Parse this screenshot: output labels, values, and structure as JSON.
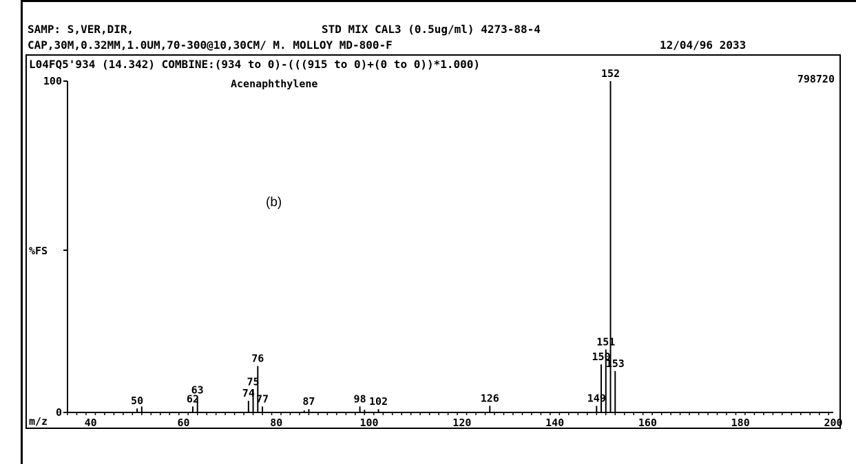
{
  "header": {
    "line1_left": "SAMP: S,VER,DIR,",
    "line1_right": "STD MIX CAL3  (0.5ug/ml) 4273-88-4",
    "line2_left": "CAP,30M,0.32MM,1.0UM,70-300@10,30CM/ M. MOLLOY  MD-800-F",
    "line2_date": "12/04/96 2033",
    "line3": "L04FQ5'934 (14.342)  COMBINE:(934 to 0)-(((915 to 0)+(0 to 0))*1.000)"
  },
  "panel_label": "(b)",
  "chart_data": {
    "type": "bar",
    "title": "Acenaphthylene",
    "xlabel": "m/z",
    "ylabel": "%FS",
    "xlim": [
      35,
      200
    ],
    "ylim": [
      0,
      100
    ],
    "x_ticks": [
      40,
      60,
      80,
      100,
      120,
      140,
      160,
      180,
      200
    ],
    "y_ticks": [
      0,
      100
    ],
    "full_scale_intensity": "798720",
    "peaks": [
      {
        "mz": 50,
        "intensity": 1.2,
        "label": "50"
      },
      {
        "mz": 51,
        "intensity": 1.8,
        "label": ""
      },
      {
        "mz": 62,
        "intensity": 1.8,
        "label": "62"
      },
      {
        "mz": 63,
        "intensity": 4.5,
        "label": "63"
      },
      {
        "mz": 74,
        "intensity": 3.5,
        "label": "74"
      },
      {
        "mz": 75,
        "intensity": 7.0,
        "label": "75"
      },
      {
        "mz": 76,
        "intensity": 14.0,
        "label": "76"
      },
      {
        "mz": 77,
        "intensity": 1.8,
        "label": "77"
      },
      {
        "mz": 86,
        "intensity": 0.6,
        "label": ""
      },
      {
        "mz": 87,
        "intensity": 1.0,
        "label": "87"
      },
      {
        "mz": 98,
        "intensity": 1.8,
        "label": "98"
      },
      {
        "mz": 99,
        "intensity": 0.8,
        "label": ""
      },
      {
        "mz": 102,
        "intensity": 1.0,
        "label": "102"
      },
      {
        "mz": 126,
        "intensity": 2.0,
        "label": "126"
      },
      {
        "mz": 149,
        "intensity": 2.0,
        "label": "149"
      },
      {
        "mz": 150,
        "intensity": 14.5,
        "label": "150"
      },
      {
        "mz": 151,
        "intensity": 19.0,
        "label": "151"
      },
      {
        "mz": 152,
        "intensity": 100,
        "label": "152"
      },
      {
        "mz": 153,
        "intensity": 12.5,
        "label": "153"
      }
    ]
  }
}
